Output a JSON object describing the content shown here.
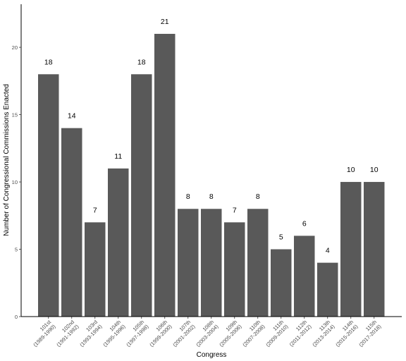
{
  "chart_data": {
    "type": "bar",
    "title": "",
    "xlabel": "Congress",
    "ylabel": "Number of Congressional Commissions Enacted",
    "ylim": [
      0,
      23.2
    ],
    "yticks": [
      0,
      5,
      10,
      15,
      20
    ],
    "grid": false,
    "bar_color": "#595959",
    "categories": [
      [
        "101st",
        "(1989-1990)"
      ],
      [
        "102nd",
        "(1991-1992)"
      ],
      [
        "103rd",
        "(1993-1994)"
      ],
      [
        "104th",
        "(1995-1996)"
      ],
      [
        "105th",
        "(1997-1998)"
      ],
      [
        "106th",
        "(1999-2000)"
      ],
      [
        "107th",
        "(2001-2002)"
      ],
      [
        "108th",
        "(2003-2004)"
      ],
      [
        "109th",
        "(2005-2006)"
      ],
      [
        "110th",
        "(2007-2008)"
      ],
      [
        "111th",
        "(2009-2010)"
      ],
      [
        "112th",
        "(2011-2012)"
      ],
      [
        "113th",
        "(2013-2014)"
      ],
      [
        "114th",
        "(2015-2016)"
      ],
      [
        "115th",
        "(2017-2018)"
      ]
    ],
    "values": [
      18,
      14,
      7,
      11,
      18,
      21,
      8,
      8,
      7,
      8,
      5,
      6,
      4,
      10,
      10
    ]
  }
}
